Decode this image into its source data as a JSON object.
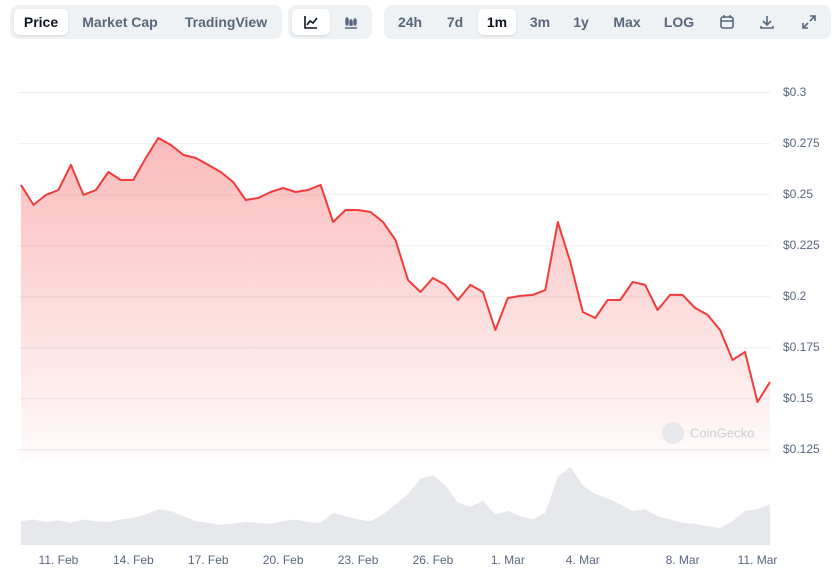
{
  "toolbar": {
    "tabs": [
      "Price",
      "Market Cap",
      "TradingView"
    ],
    "ranges": [
      "24h",
      "7d",
      "1m",
      "3m",
      "1y",
      "Max",
      "LOG"
    ]
  },
  "chart_data": {
    "type": "line",
    "watermark": "CoinGecko",
    "categories": [
      null,
      null,
      null,
      "11. Feb",
      null,
      null,
      null,
      null,
      null,
      "14. Feb",
      null,
      null,
      null,
      null,
      null,
      "17. Feb",
      null,
      null,
      null,
      null,
      null,
      "20. Feb",
      null,
      null,
      null,
      null,
      null,
      "23. Feb",
      null,
      null,
      null,
      null,
      null,
      "26. Feb",
      null,
      null,
      null,
      null,
      null,
      "1. Mar",
      null,
      null,
      null,
      null,
      null,
      "4. Mar",
      null,
      null,
      null,
      null,
      null,
      null,
      null,
      "8. Mar",
      null,
      null,
      null,
      null,
      null,
      "11. Mar",
      null
    ],
    "series": [
      {
        "color": "#f23b3b",
        "values": [
          0.2548,
          0.245,
          0.2499,
          0.2523,
          0.2646,
          0.2499,
          0.2523,
          0.2611,
          0.2572,
          0.2572,
          0.268,
          0.2778,
          0.2744,
          0.2695,
          0.268,
          0.2646,
          0.2611,
          0.2562,
          0.2474,
          0.2484,
          0.2513,
          0.2533,
          0.2513,
          0.2523,
          0.2548,
          0.2366,
          0.2425,
          0.2425,
          0.2415,
          0.2366,
          0.2278,
          0.2082,
          0.2023,
          0.2092,
          0.2058,
          0.1984,
          0.2058,
          0.2023,
          0.1837,
          0.1994,
          0.2004,
          0.2009,
          0.2033,
          0.2366,
          0.217,
          0.1925,
          0.1896,
          0.1984,
          0.1984,
          0.2072,
          0.2058,
          0.1935,
          0.2009,
          0.2009,
          0.1945,
          0.1911,
          0.1837,
          0.169,
          0.1729,
          0.1484,
          0.1582
        ]
      },
      {
        "color": "#e6e8ec",
        "axis": "y2",
        "values": [
          28,
          30,
          27,
          29,
          26,
          30,
          28,
          27,
          30,
          32,
          36,
          42,
          40,
          34,
          28,
          26,
          24,
          25,
          27,
          26,
          25,
          28,
          30,
          27,
          26,
          38,
          34,
          30,
          28,
          36,
          48,
          60,
          78,
          82,
          70,
          50,
          45,
          52,
          36,
          40,
          34,
          30,
          38,
          80,
          92,
          70,
          60,
          55,
          48,
          40,
          42,
          34,
          30,
          26,
          25,
          22,
          20,
          28,
          40,
          42,
          48
        ]
      }
    ],
    "ylim": [
      0.12,
      0.316
    ],
    "yticks": [
      {
        "value": 0.125,
        "label": "$0.125"
      },
      {
        "value": 0.15,
        "label": "$0.15"
      },
      {
        "value": 0.175,
        "label": "$0.175"
      },
      {
        "value": 0.2,
        "label": "$0.2"
      },
      {
        "value": 0.225,
        "label": "$0.225"
      },
      {
        "value": 0.25,
        "label": "$0.25"
      },
      {
        "value": 0.275,
        "label": "$0.275"
      },
      {
        "value": 0.3,
        "label": "$0.3"
      }
    ],
    "y2lim": [
      0,
      100
    ],
    "grid": true
  }
}
